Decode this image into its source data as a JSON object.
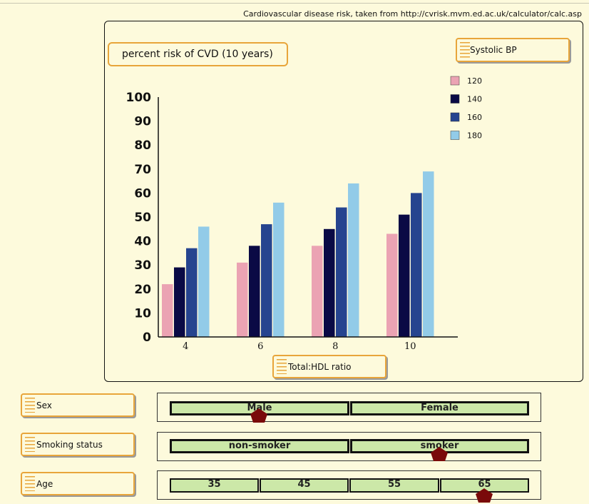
{
  "source_text": "Cardiovascular disease risk, taken from http://cvrisk.mvm.ed.ac.uk/calculator/calc.asp",
  "chart_data": {
    "type": "bar",
    "title": "percent risk of CVD (10 years)",
    "xlabel": "Total:HDL ratio",
    "ylabel": "",
    "ylim": [
      0,
      100
    ],
    "yticks": [
      0,
      10,
      20,
      30,
      40,
      50,
      60,
      70,
      80,
      90,
      100
    ],
    "categories": [
      "4",
      "6",
      "8",
      "10"
    ],
    "legend_title": "Systolic BP",
    "legend_position": "top-right",
    "grid": false,
    "series": [
      {
        "name": "120",
        "color": "#eba3b3",
        "values": [
          22,
          31,
          38,
          43
        ]
      },
      {
        "name": "140",
        "color": "#0a0a45",
        "values": [
          29,
          38,
          45,
          51
        ]
      },
      {
        "name": "160",
        "color": "#26448f",
        "values": [
          37,
          47,
          54,
          60
        ]
      },
      {
        "name": "180",
        "color": "#92cbe8",
        "values": [
          46,
          56,
          64,
          69
        ]
      }
    ]
  },
  "controls": {
    "sex": {
      "label": "Sex",
      "options": [
        "Male",
        "Female"
      ],
      "selected": "Male"
    },
    "smoking": {
      "label": "Smoking status",
      "options": [
        "non-smoker",
        "smoker"
      ],
      "selected": "smoker"
    },
    "age": {
      "label": "Age",
      "options": [
        "35",
        "45",
        "55",
        "65"
      ],
      "selected": "65"
    }
  },
  "colors": {
    "background": "#fdfadc",
    "accent": "#e8a53a",
    "segment_fill": "#cce8a8",
    "marker": "#7a0a0a"
  }
}
